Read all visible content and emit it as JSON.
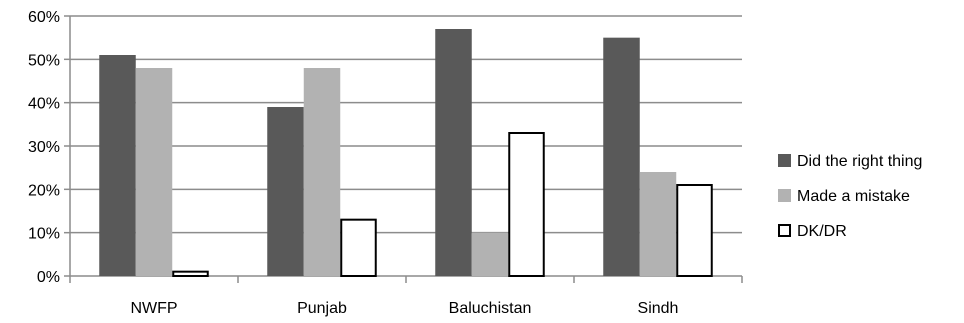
{
  "chart_data": {
    "type": "bar",
    "categories": [
      "NWFP",
      "Punjab",
      "Baluchistan",
      "Sindh"
    ],
    "series": [
      {
        "name": "Did the right thing",
        "values": [
          51,
          39,
          57,
          55
        ],
        "color": "#595959",
        "stroke": "#404040"
      },
      {
        "name": "Made a mistake",
        "values": [
          48,
          48,
          10,
          24
        ],
        "color": "#b2b2b2",
        "stroke": "#b2b2b2"
      },
      {
        "name": "DK/DR",
        "values": [
          1,
          13,
          33,
          21
        ],
        "color": "#ffffff",
        "stroke": "#000000"
      }
    ],
    "ylim": [
      0,
      60
    ],
    "yticks": [
      "0%",
      "10%",
      "20%",
      "30%",
      "40%",
      "50%",
      "60%"
    ],
    "grid": true,
    "legend_position": "right",
    "title": "",
    "xlabel": "",
    "ylabel": ""
  }
}
